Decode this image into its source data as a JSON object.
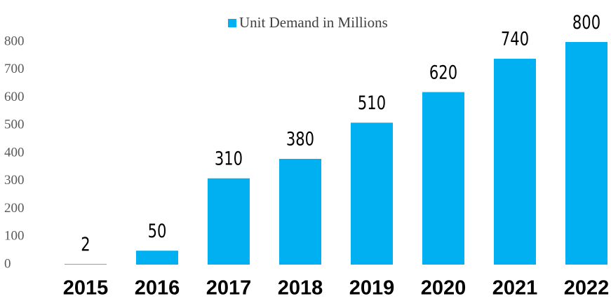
{
  "chart_data": {
    "type": "bar",
    "categories": [
      "2015",
      "2016",
      "2017",
      "2018",
      "2019",
      "2020",
      "2021",
      "2022"
    ],
    "series": [
      {
        "name": "Unit Demand in Millions",
        "color": "#00b0f0",
        "values": [
          2,
          50,
          310,
          380,
          510,
          620,
          740,
          800
        ]
      }
    ],
    "ylim": [
      0,
      800
    ],
    "yticks": [
      0,
      100,
      200,
      300,
      400,
      500,
      600,
      700,
      800
    ],
    "grid": false,
    "legend": "top"
  }
}
